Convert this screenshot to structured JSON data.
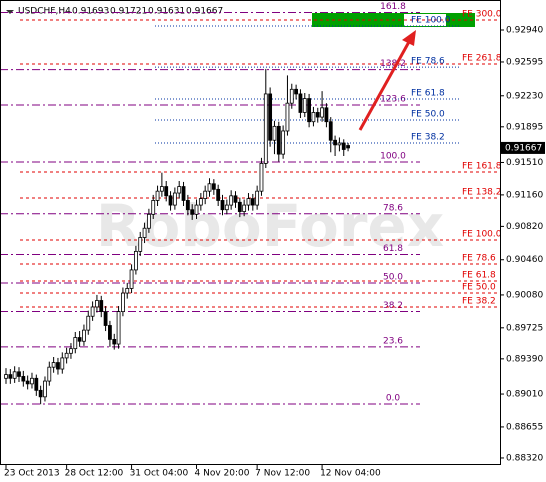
{
  "chart_data": {
    "type": "candlestick",
    "title": "USDCHF,H4",
    "header_values": [
      0.91693,
      0.91721,
      0.91631,
      0.91667
    ],
    "watermark": "RoboForex",
    "categories": [
      "23 Oct 2013",
      null,
      null,
      null,
      null,
      null,
      null,
      null,
      null,
      null,
      null,
      null,
      null,
      null,
      "28 Oct 12:00",
      null,
      null,
      null,
      null,
      null,
      null,
      null,
      null,
      null,
      null,
      null,
      null,
      null,
      null,
      "31 Oct 04:00",
      null,
      null,
      null,
      null,
      null,
      null,
      null,
      null,
      null,
      null,
      null,
      null,
      null,
      null,
      "4 Nov 20:00",
      null,
      null,
      null,
      null,
      null,
      null,
      null,
      null,
      null,
      null,
      null,
      null,
      null,
      "7 Nov 12:00",
      null,
      null,
      null,
      null,
      null,
      null,
      null,
      null,
      null,
      null,
      null,
      null,
      null,
      null,
      "12 Nov 04:00",
      null,
      null,
      null,
      null,
      null,
      null
    ],
    "ohlc": [
      [
        0.8918,
        0.8929,
        0.8912,
        0.8922
      ],
      [
        0.8922,
        0.8928,
        0.8912,
        0.8918
      ],
      [
        0.8918,
        0.8931,
        0.8913,
        0.8925
      ],
      [
        0.8925,
        0.893,
        0.8914,
        0.892
      ],
      [
        0.892,
        0.8926,
        0.8909,
        0.8915
      ],
      [
        0.8915,
        0.8921,
        0.8906,
        0.8912
      ],
      [
        0.8912,
        0.8924,
        0.8907,
        0.8918
      ],
      [
        0.8918,
        0.8922,
        0.8899,
        0.8905
      ],
      [
        0.8905,
        0.891,
        0.889,
        0.8898
      ],
      [
        0.8898,
        0.892,
        0.8893,
        0.8915
      ],
      [
        0.8915,
        0.8936,
        0.891,
        0.893
      ],
      [
        0.893,
        0.8941,
        0.8924,
        0.8935
      ],
      [
        0.8935,
        0.894,
        0.8922,
        0.8928
      ],
      [
        0.8928,
        0.8946,
        0.8923,
        0.894
      ],
      [
        0.894,
        0.8951,
        0.8934,
        0.8945
      ],
      [
        0.8945,
        0.8956,
        0.8939,
        0.895
      ],
      [
        0.895,
        0.8968,
        0.8945,
        0.8962
      ],
      [
        0.8962,
        0.8969,
        0.8952,
        0.8958
      ],
      [
        0.8958,
        0.8976,
        0.8953,
        0.897
      ],
      [
        0.897,
        0.8991,
        0.8965,
        0.8985
      ],
      [
        0.8985,
        0.9001,
        0.898,
        0.8995
      ],
      [
        0.8995,
        0.9008,
        0.8989,
        0.9002
      ],
      [
        0.9002,
        0.9007,
        0.8984,
        0.899
      ],
      [
        0.899,
        0.8996,
        0.8969,
        0.8975
      ],
      [
        0.8975,
        0.898,
        0.8952,
        0.896
      ],
      [
        0.896,
        0.8966,
        0.8949,
        0.8955
      ],
      [
        0.8955,
        0.8996,
        0.895,
        0.899
      ],
      [
        0.899,
        0.9016,
        0.8985,
        0.901
      ],
      [
        0.901,
        0.9021,
        0.9004,
        0.9015
      ],
      [
        0.9015,
        0.9041,
        0.901,
        0.9035
      ],
      [
        0.9035,
        0.9061,
        0.903,
        0.9055
      ],
      [
        0.9055,
        0.9076,
        0.905,
        0.907
      ],
      [
        0.907,
        0.9086,
        0.9064,
        0.908
      ],
      [
        0.908,
        0.9101,
        0.9075,
        0.9095
      ],
      [
        0.9095,
        0.9116,
        0.909,
        0.911
      ],
      [
        0.911,
        0.9126,
        0.9104,
        0.912
      ],
      [
        0.912,
        0.914,
        0.9114,
        0.9125
      ],
      [
        0.9125,
        0.9131,
        0.9109,
        0.9115
      ],
      [
        0.9115,
        0.912,
        0.9099,
        0.9105
      ],
      [
        0.9105,
        0.9124,
        0.91,
        0.9118
      ],
      [
        0.9118,
        0.9131,
        0.9112,
        0.9125
      ],
      [
        0.9125,
        0.913,
        0.9104,
        0.911
      ],
      [
        0.911,
        0.9116,
        0.9094,
        0.91
      ],
      [
        0.91,
        0.9106,
        0.9089,
        0.9095
      ],
      [
        0.9095,
        0.9111,
        0.909,
        0.9105
      ],
      [
        0.9105,
        0.9118,
        0.9099,
        0.9112
      ],
      [
        0.9112,
        0.9126,
        0.9106,
        0.912
      ],
      [
        0.912,
        0.9134,
        0.9114,
        0.9128
      ],
      [
        0.9128,
        0.9133,
        0.9116,
        0.9122
      ],
      [
        0.9122,
        0.9127,
        0.9104,
        0.911
      ],
      [
        0.911,
        0.9116,
        0.9094,
        0.91
      ],
      [
        0.91,
        0.9111,
        0.9095,
        0.9105
      ],
      [
        0.9105,
        0.9121,
        0.91,
        0.9115
      ],
      [
        0.9115,
        0.912,
        0.9102,
        0.9108
      ],
      [
        0.9108,
        0.9113,
        0.9092,
        0.9098
      ],
      [
        0.9098,
        0.9111,
        0.9093,
        0.9105
      ],
      [
        0.9105,
        0.9118,
        0.9099,
        0.9112
      ],
      [
        0.9112,
        0.9117,
        0.9099,
        0.9105
      ],
      [
        0.9105,
        0.9126,
        0.91,
        0.912
      ],
      [
        0.912,
        0.9156,
        0.9115,
        0.915
      ],
      [
        0.915,
        0.9252,
        0.9145,
        0.9225
      ],
      [
        0.9225,
        0.9232,
        0.9168,
        0.9175
      ],
      [
        0.9175,
        0.9196,
        0.916,
        0.919
      ],
      [
        0.919,
        0.9195,
        0.9152,
        0.916
      ],
      [
        0.916,
        0.9191,
        0.9155,
        0.9185
      ],
      [
        0.9185,
        0.9245,
        0.918,
        0.9215
      ],
      [
        0.9215,
        0.9236,
        0.9209,
        0.923
      ],
      [
        0.923,
        0.9235,
        0.9219,
        0.9225
      ],
      [
        0.9225,
        0.923,
        0.9199,
        0.9205
      ],
      [
        0.9205,
        0.9226,
        0.92,
        0.922
      ],
      [
        0.922,
        0.9225,
        0.9189,
        0.9195
      ],
      [
        0.9195,
        0.9211,
        0.919,
        0.9205
      ],
      [
        0.9205,
        0.921,
        0.9194,
        0.92
      ],
      [
        0.92,
        0.9228,
        0.9195,
        0.921
      ],
      [
        0.921,
        0.9215,
        0.9189,
        0.9195
      ],
      [
        0.9195,
        0.92,
        0.9162,
        0.9175
      ],
      [
        0.9175,
        0.918,
        0.9158,
        0.917
      ],
      [
        0.917,
        0.9178,
        0.9163,
        0.9172
      ],
      [
        0.9172,
        0.9176,
        0.9158,
        0.9165
      ],
      [
        0.91693,
        0.91721,
        0.91631,
        0.91667
      ]
    ],
    "ylim": [
      0.88244,
      0.93264
    ],
    "yticks": [
      {
        "value": 0.9294,
        "label": "0.92940"
      },
      {
        "value": 0.92595,
        "label": "0.92595"
      },
      {
        "value": 0.9223,
        "label": "0.92230"
      },
      {
        "value": 0.91895,
        "label": "0.91895"
      },
      {
        "value": 0.9151,
        "label": "0.91510"
      },
      {
        "value": 0.9116,
        "label": "0.91160"
      },
      {
        "value": 0.9082,
        "label": "0.90820"
      },
      {
        "value": 0.9046,
        "label": "0.90460"
      },
      {
        "value": 0.9008,
        "label": "0.90080"
      },
      {
        "value": 0.89725,
        "label": "0.89725"
      },
      {
        "value": 0.8939,
        "label": "0.89390"
      },
      {
        "value": 0.8901,
        "label": "0.89010"
      },
      {
        "value": 0.88655,
        "label": "0.88655"
      },
      {
        "value": 0.8832,
        "label": "0.88320"
      }
    ],
    "current_price": 0.91667,
    "retracement_levels": [
      {
        "label": "161.8",
        "price": 0.93129
      },
      {
        "label": "138.2",
        "price": 0.92513
      },
      {
        "label": "123.6",
        "price": 0.92131
      },
      {
        "label": "100.0",
        "price": 0.91515
      },
      {
        "label": "78.6",
        "price": 0.90956
      },
      {
        "label": "61.8",
        "price": 0.90517
      },
      {
        "label": "50.0",
        "price": 0.90209
      },
      {
        "label": "38.2",
        "price": 0.89901
      },
      {
        "label": "23.6",
        "price": 0.89519
      },
      {
        "label": "0.0",
        "price": 0.88903
      }
    ],
    "expansion_levels_red": [
      {
        "label": "FE 300.0",
        "price": 0.93048
      },
      {
        "label": "FE 261.8",
        "price": 0.92573
      },
      {
        "label": "FE 161.8",
        "price": 0.91407
      },
      {
        "label": "FE 138.2",
        "price": 0.91127
      },
      {
        "label": "FE 100.0",
        "price": 0.90673
      },
      {
        "label": "FE 78.6",
        "price": 0.90414
      },
      {
        "label": "FE 61.8",
        "price": 0.90231
      },
      {
        "label": "FE 50.0",
        "price": 0.90101
      },
      {
        "label": "FE 38.2",
        "price": 0.8995
      }
    ],
    "expansion_levels_blue": [
      {
        "label": "FE 100.0",
        "price": 0.92983
      },
      {
        "label": "FE 78.6",
        "price": 0.9254
      },
      {
        "label": "FE 61.8",
        "price": 0.92195
      },
      {
        "label": "FE 50.0",
        "price": 0.91968
      },
      {
        "label": "FE 38.2",
        "price": 0.9172
      }
    ]
  }
}
